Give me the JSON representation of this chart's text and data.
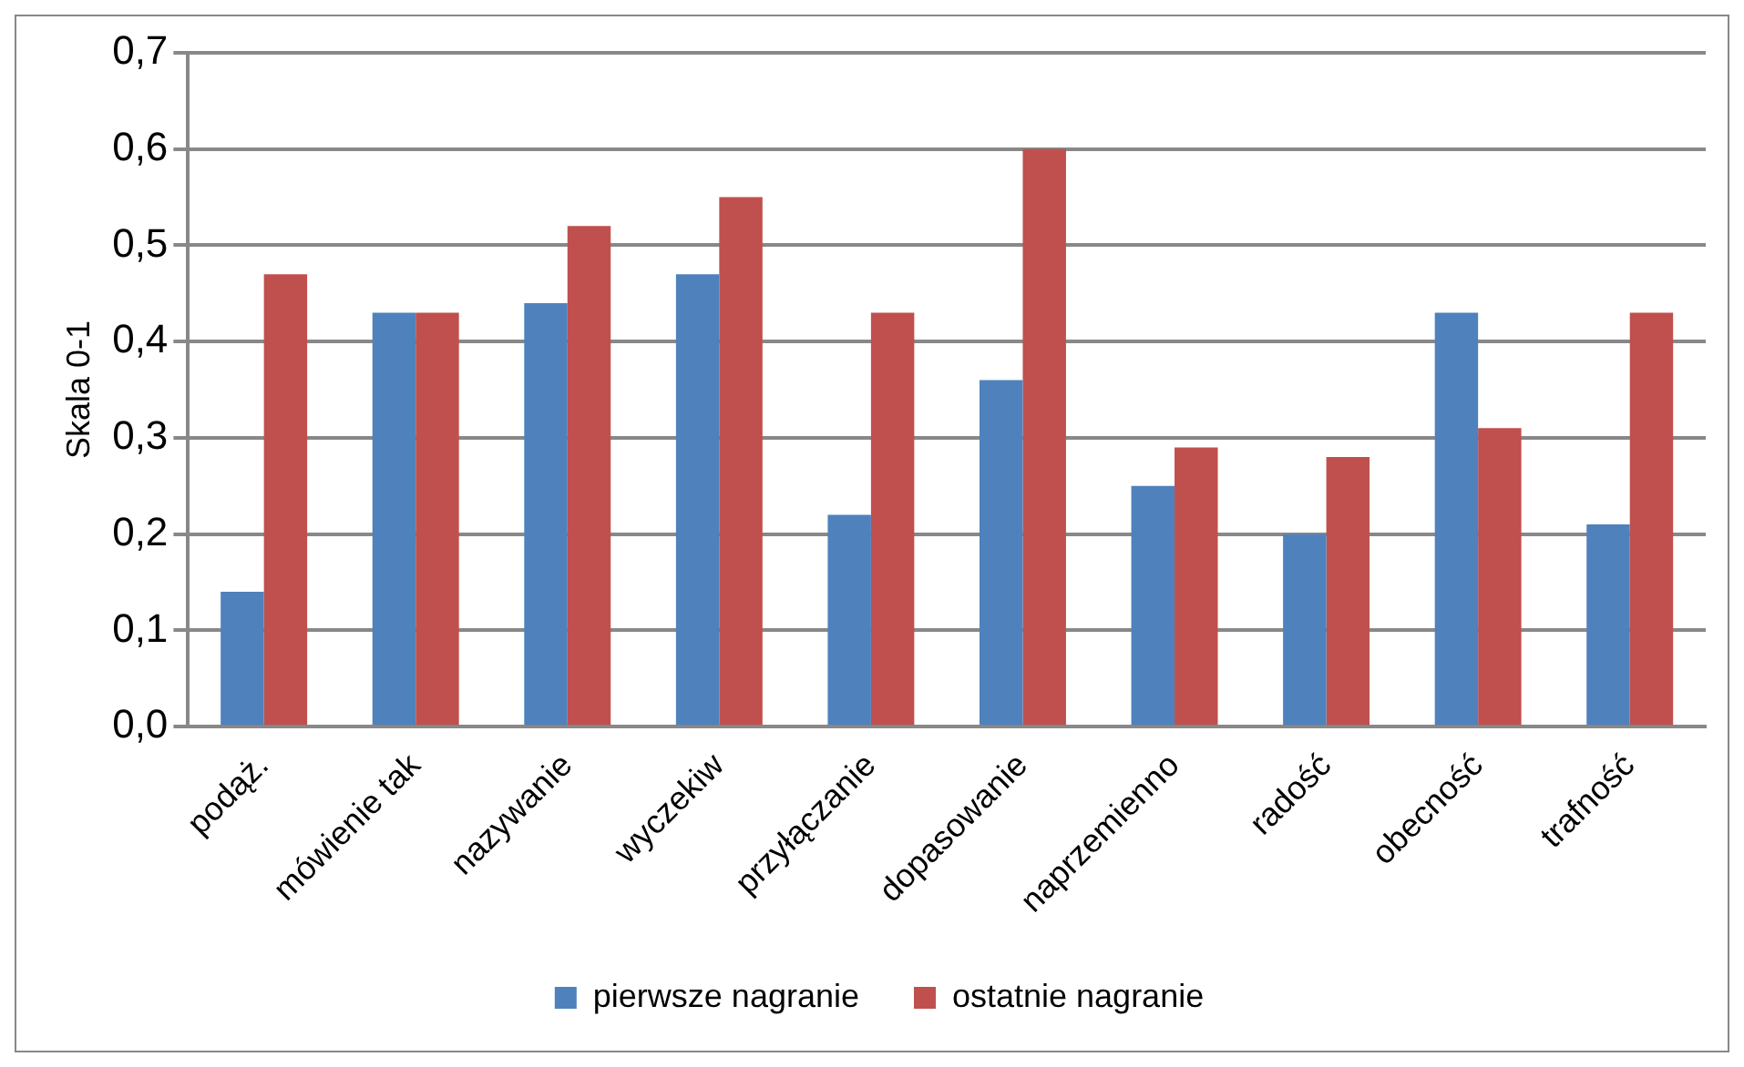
{
  "chart_data": {
    "type": "bar",
    "ylabel": "Skala 0-1",
    "categories": [
      "podąż.",
      "mówienie tak",
      "nazywanie",
      "wyczekiw",
      "przyłączanie",
      "dopasowanie",
      "naprzemienno",
      "radość",
      "obecność",
      "trafność"
    ],
    "series": [
      {
        "name": "pierwsze nagranie",
        "color": "#4f81bd",
        "values": [
          0.14,
          0.43,
          0.44,
          0.47,
          0.22,
          0.36,
          0.25,
          0.2,
          0.43,
          0.21
        ]
      },
      {
        "name": "ostatnie nagranie",
        "color": "#c0504d",
        "values": [
          0.47,
          0.43,
          0.52,
          0.55,
          0.43,
          0.6,
          0.29,
          0.28,
          0.31,
          0.43
        ]
      }
    ],
    "ylim": [
      0,
      0.7
    ],
    "yticks": [
      {
        "value": 0,
        "label": "0,0"
      },
      {
        "value": 0.1,
        "label": "0,1"
      },
      {
        "value": 0.2,
        "label": "0,2"
      },
      {
        "value": 0.3,
        "label": "0,3"
      },
      {
        "value": 0.4,
        "label": "0,4"
      },
      {
        "value": 0.5,
        "label": "0,5"
      },
      {
        "value": 0.6,
        "label": "0,6"
      },
      {
        "value": 0.7,
        "label": "0,7"
      }
    ],
    "grid": "y",
    "legend": "bottom"
  }
}
